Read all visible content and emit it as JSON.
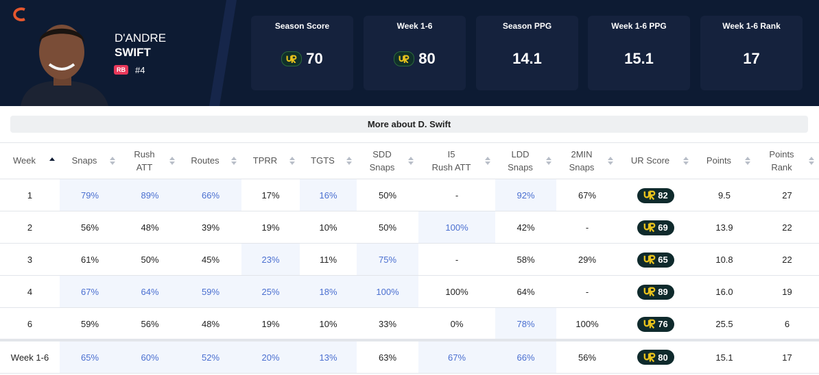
{
  "header": {
    "first_name": "D'ANDRE",
    "last_name": "SWIFT",
    "position": "RB",
    "number": "#4"
  },
  "stats": [
    {
      "label": "Season Score",
      "value": "70"
    },
    {
      "label": "Week 1-6",
      "value": "80"
    },
    {
      "label": "Season PPG",
      "value": "14.1"
    },
    {
      "label": "Week 1-6 PPG",
      "value": "15.1"
    },
    {
      "label": "Week 1-6 Rank",
      "value": "17"
    }
  ],
  "more_button": "More about D. Swift",
  "table": {
    "columns": [
      [
        "Week"
      ],
      [
        "Snaps"
      ],
      [
        "Rush",
        "ATT"
      ],
      [
        "Routes"
      ],
      [
        "TPRR"
      ],
      [
        "TGTS"
      ],
      [
        "SDD",
        "Snaps"
      ],
      [
        "I5",
        "Rush ATT"
      ],
      [
        "LDD",
        "Snaps"
      ],
      [
        "2MIN",
        "Snaps"
      ],
      [
        "UR Score"
      ],
      [
        "Points"
      ],
      [
        "Points",
        "Rank"
      ]
    ],
    "rows": [
      [
        "1",
        "79%",
        "89%",
        "66%",
        "17%",
        "16%",
        "50%",
        "-",
        "92%",
        "67%",
        "82",
        "9.5",
        "27"
      ],
      [
        "2",
        "56%",
        "48%",
        "39%",
        "19%",
        "10%",
        "50%",
        "100%",
        "42%",
        "-",
        "69",
        "13.9",
        "22"
      ],
      [
        "3",
        "61%",
        "50%",
        "45%",
        "23%",
        "11%",
        "75%",
        "-",
        "58%",
        "29%",
        "65",
        "10.8",
        "22"
      ],
      [
        "4",
        "67%",
        "64%",
        "59%",
        "25%",
        "18%",
        "100%",
        "100%",
        "64%",
        "-",
        "89",
        "16.0",
        "19"
      ],
      [
        "6",
        "59%",
        "56%",
        "48%",
        "19%",
        "10%",
        "33%",
        "0%",
        "78%",
        "100%",
        "76",
        "25.5",
        "6"
      ]
    ],
    "summary": [
      "Week 1-6",
      "65%",
      "60%",
      "52%",
      "20%",
      "13%",
      "63%",
      "67%",
      "66%",
      "56%",
      "80",
      "15.1",
      "17"
    ]
  }
}
